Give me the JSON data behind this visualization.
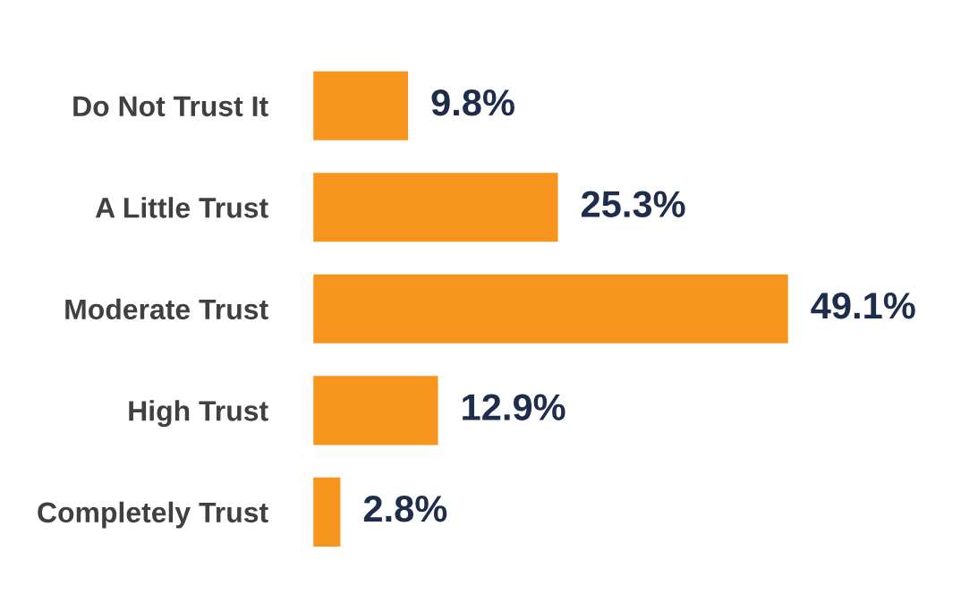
{
  "chart_data": {
    "type": "bar",
    "orientation": "horizontal",
    "categories": [
      "Do Not Trust It",
      "A Little Trust",
      "Moderate Trust",
      "High Trust",
      "Completely Trust"
    ],
    "values": [
      9.8,
      25.3,
      49.1,
      12.9,
      2.8
    ],
    "value_labels": [
      "9.8%",
      "25.3%",
      "49.1%",
      "12.9%",
      "2.8%"
    ],
    "color": "#f7941d",
    "grid": false,
    "legend": false
  }
}
